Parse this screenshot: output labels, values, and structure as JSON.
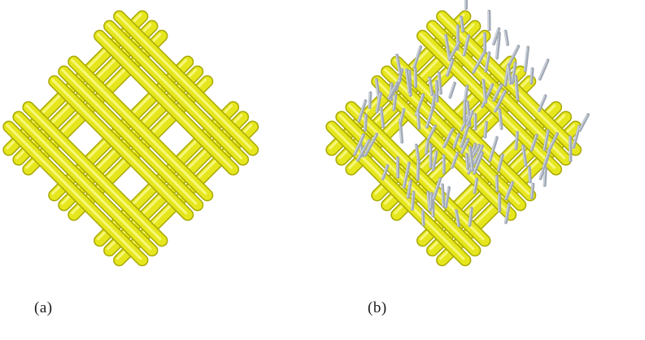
{
  "figure": {
    "panels": [
      {
        "id": "a",
        "label": "(a)",
        "content": "woven-fabric"
      },
      {
        "id": "b",
        "label": "(b)",
        "content": "woven-fabric-with-fibers"
      }
    ]
  },
  "colors": {
    "yarn_fill": "#e6e61e",
    "yarn_edge": "#a8a800",
    "yarn_highlight": "#fafa8c",
    "fiber": "#a0a8b4",
    "fiber_light": "#d2d8e0",
    "background": "#ffffff"
  }
}
